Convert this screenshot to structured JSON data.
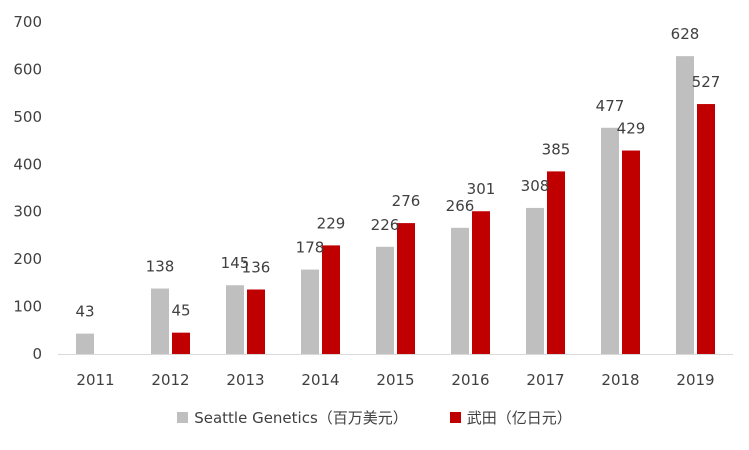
{
  "chart_data": {
    "type": "bar",
    "title": "",
    "xlabel": "",
    "ylabel": "",
    "categories": [
      "2011",
      "2012",
      "2013",
      "2014",
      "2015",
      "2016",
      "2017",
      "2018",
      "2019"
    ],
    "series": [
      {
        "name": "Seattle Genetics（百万美元）",
        "color": "#bfbfbf",
        "values": [
          43,
          138,
          145,
          178,
          226,
          266,
          308,
          477,
          628
        ]
      },
      {
        "name": "武田（亿日元）",
        "color": "#c00000",
        "values": [
          null,
          45,
          136,
          229,
          276,
          301,
          385,
          429,
          527
        ]
      }
    ],
    "ylim": [
      0,
      700
    ],
    "yticks": [
      0,
      100,
      200,
      300,
      400,
      500,
      600,
      700
    ],
    "grid": false,
    "legend_position": "bottom"
  }
}
